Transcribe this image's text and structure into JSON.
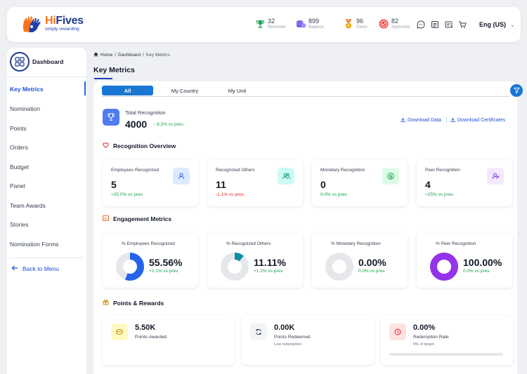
{
  "brand": {
    "name_hi": "Hi",
    "name_rest": "Fives",
    "tagline": "simply rewarding"
  },
  "topbar": {
    "stats": [
      {
        "value": "32",
        "label": "Received"
      },
      {
        "value": "899",
        "label": "Balance"
      },
      {
        "value": "96",
        "label": "Given"
      },
      {
        "value": "82",
        "label": "Approvals"
      }
    ],
    "language": "Eng (US)"
  },
  "sidebar": {
    "title": "Dashboard",
    "items": [
      {
        "label": "Key Metrics",
        "active": true
      },
      {
        "label": "Nomination"
      },
      {
        "label": "Points"
      },
      {
        "label": "Orders"
      },
      {
        "label": "Budget"
      },
      {
        "label": "Panel"
      },
      {
        "label": "Team Awards"
      },
      {
        "label": "Stories"
      },
      {
        "label": "Nomination Forms"
      }
    ],
    "back_label": "Back to Menu"
  },
  "breadcrumb": {
    "home": "Home",
    "sep1": "/",
    "dashboard": "Dashboard",
    "sep2": "/",
    "current": "Key Metrics"
  },
  "page_title": "Key Metrics",
  "tabs": [
    "All",
    "My Country",
    "My Unit"
  ],
  "total_recognition": {
    "label": "Total Recognition",
    "value": "4000",
    "delta": "8.2% vs prev."
  },
  "downloads": {
    "data": "Download Data",
    "certificates": "Download Certificates"
  },
  "recognition_overview": {
    "title": "Recognition Overview",
    "cards": [
      {
        "label": "Employees Recognized",
        "value": "5",
        "delta": "+25.0% vs prev.",
        "trend": "up",
        "icon": "user-icon",
        "icon_bg": "#dbeafe",
        "icon_color": "#2563eb"
      },
      {
        "label": "Recognized Others",
        "value": "11",
        "delta": "-1.1% vs prev.",
        "trend": "down",
        "icon": "users-icon",
        "icon_bg": "#ccfbf1",
        "icon_color": "#0d9488"
      },
      {
        "label": "Monetary Recognition",
        "value": "0",
        "delta": "0.0% vs prev.",
        "trend": "up",
        "icon": "dollar-icon",
        "icon_bg": "#dcfce7",
        "icon_color": "#16a34a"
      },
      {
        "label": "Peer Recognition",
        "value": "4",
        "delta": "+25% vs prev.",
        "trend": "up",
        "icon": "user-plus-icon",
        "icon_bg": "#f3e8ff",
        "icon_color": "#9333ea"
      }
    ]
  },
  "engagement_metrics": {
    "title": "Engagement Metrics",
    "cards": [
      {
        "label": "% Employees Recognized",
        "value": "55.56%",
        "delta": "+2.1% vs prev.",
        "percent": 55.56,
        "color": "#2563eb"
      },
      {
        "label": "% Recognized Others",
        "value": "11.11%",
        "delta": "+1.2% vs prev.",
        "percent": 11.11,
        "color": "#0e8fa0"
      },
      {
        "label": "% Monetary Recognition",
        "value": "0.00%",
        "delta": "0.0% vs prev.",
        "percent": 0,
        "color": "#16a34a"
      },
      {
        "label": "% Peer Recognition",
        "value": "100.00%",
        "delta": "0.0% vs prev.",
        "percent": 100,
        "color": "#9333ea"
      }
    ]
  },
  "points_rewards": {
    "title": "Points & Rewards",
    "cards": [
      {
        "value": "5.50K",
        "label": "Points Awarded",
        "sub": "",
        "icon": "coins-icon",
        "icon_bg": "#fef9c3",
        "icon_color": "#ca8a04"
      },
      {
        "value": "0.00K",
        "label": "Points Redeemed",
        "sub": "Low redemption",
        "icon": "refresh-icon",
        "icon_bg": "#f3f4f6",
        "icon_color": "#374151"
      },
      {
        "value": "0.00%",
        "label": "Redemption Rate",
        "sub": "0% of target",
        "icon": "gauge-icon",
        "icon_bg": "#fee2e2",
        "icon_color": "#dc2626",
        "progress": 0
      }
    ]
  }
}
